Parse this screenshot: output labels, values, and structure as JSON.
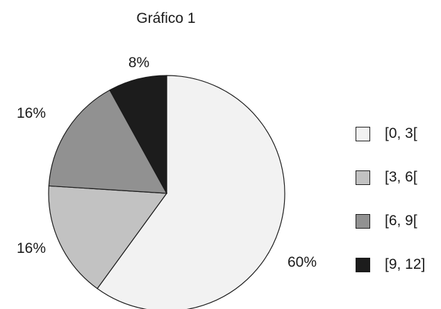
{
  "chart_data": {
    "type": "pie",
    "title": "Gráfico 1",
    "categories": [
      "[0, 3[",
      "[3, 6[",
      "[6, 9[",
      "[9, 12]"
    ],
    "values": [
      60,
      16,
      16,
      8
    ],
    "value_labels": [
      "60%",
      "16%",
      "16%",
      "8%"
    ],
    "colors": [
      "#f2f2f2",
      "#c2c2c2",
      "#919191",
      "#1c1c1c"
    ],
    "legend_position": "right",
    "start_angle": "top, clockwise"
  }
}
